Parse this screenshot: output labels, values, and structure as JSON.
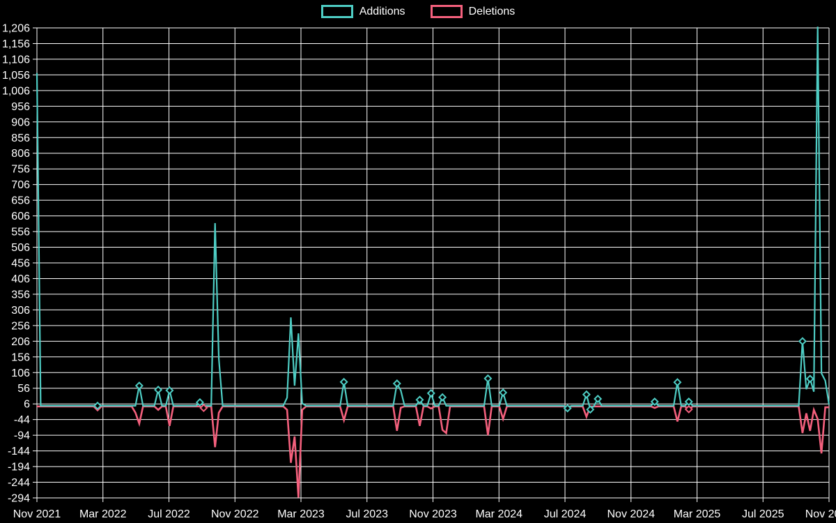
{
  "page": {
    "background": "#000000",
    "grid_color": "#ffffff",
    "text_color": "#ffffff"
  },
  "chart_data": {
    "type": "line",
    "title": "",
    "legend": {
      "position": "top-center",
      "items": [
        {
          "label": "Additions",
          "color": "#4ecdc4"
        },
        {
          "label": "Deletions",
          "color": "#f4607d"
        }
      ]
    },
    "x_axis": {
      "tick_labels": [
        "Nov 2021",
        "Mar 2022",
        "Jul 2022",
        "Nov 2022",
        "Mar 2023",
        "Jul 2023",
        "Nov 2023",
        "Mar 2024",
        "Jul 2024",
        "Nov 2024",
        "Mar 2025",
        "Jul 2025",
        "Nov 2025"
      ],
      "unit": "weeks",
      "week_range": [
        0,
        209
      ]
    },
    "y_axis": {
      "min": -294,
      "max": 1206,
      "step": 50,
      "tick_labels": [
        "1,206",
        "1,156",
        "1,106",
        "1,056",
        "1,006",
        "956",
        "906",
        "856",
        "806",
        "756",
        "706",
        "656",
        "606",
        "556",
        "506",
        "456",
        "406",
        "356",
        "306",
        "256",
        "206",
        "156",
        "106",
        "56",
        "6",
        "-44",
        "-94",
        "-144",
        "-194",
        "-244",
        "-294"
      ]
    },
    "grid": {
      "horizontal": true,
      "vertical": true
    },
    "marker_style": "hollow-diamond",
    "series": [
      {
        "name": "Additions",
        "color": "#4ecdc4",
        "points": [
          [
            0,
            1062
          ],
          [
            1,
            0
          ],
          [
            15,
            0
          ],
          [
            16,
            0,
            1
          ],
          [
            17,
            0
          ],
          [
            26,
            0
          ],
          [
            27,
            64,
            1
          ],
          [
            28,
            0
          ],
          [
            31,
            0
          ],
          [
            32,
            51,
            1
          ],
          [
            33,
            0
          ],
          [
            34,
            0
          ],
          [
            35,
            49,
            1
          ],
          [
            36,
            0
          ],
          [
            42,
            0
          ],
          [
            43,
            11,
            1
          ],
          [
            44,
            0
          ],
          [
            46,
            0
          ],
          [
            47,
            583
          ],
          [
            48,
            150
          ],
          [
            49,
            0
          ],
          [
            65,
            0
          ],
          [
            66,
            26
          ],
          [
            67,
            282
          ],
          [
            68,
            64
          ],
          [
            69,
            231
          ],
          [
            70,
            8
          ],
          [
            71,
            0
          ],
          [
            80,
            0
          ],
          [
            81,
            76,
            1
          ],
          [
            82,
            0
          ],
          [
            94,
            0
          ],
          [
            95,
            71,
            1
          ],
          [
            96,
            49
          ],
          [
            97,
            0
          ],
          [
            100,
            0
          ],
          [
            101,
            19,
            1
          ],
          [
            102,
            0
          ],
          [
            103,
            0
          ],
          [
            104,
            40,
            1
          ],
          [
            105,
            0
          ],
          [
            106,
            0
          ],
          [
            107,
            27,
            1
          ],
          [
            108,
            0
          ],
          [
            118,
            0
          ],
          [
            119,
            87,
            1
          ],
          [
            120,
            0
          ],
          [
            122,
            0
          ],
          [
            123,
            42,
            1
          ],
          [
            124,
            0
          ],
          [
            139,
            0
          ],
          [
            140,
            -8,
            1
          ],
          [
            141,
            0
          ],
          [
            144,
            0
          ],
          [
            145,
            36,
            1
          ],
          [
            146,
            -12,
            1
          ],
          [
            147,
            0
          ],
          [
            148,
            22,
            1
          ],
          [
            149,
            0
          ],
          [
            162,
            0
          ],
          [
            163,
            13,
            1
          ],
          [
            164,
            0
          ],
          [
            168,
            0
          ],
          [
            169,
            75,
            1
          ],
          [
            170,
            0
          ],
          [
            171,
            0
          ],
          [
            172,
            13,
            1
          ],
          [
            173,
            0
          ],
          [
            200,
            0
          ],
          [
            201,
            0
          ],
          [
            202,
            206,
            1
          ],
          [
            203,
            53
          ],
          [
            204,
            86,
            1
          ],
          [
            205,
            45
          ],
          [
            206,
            1210
          ],
          [
            207,
            104
          ],
          [
            208,
            80
          ],
          [
            209,
            4
          ]
        ]
      },
      {
        "name": "Deletions",
        "color": "#f4607d",
        "points": [
          [
            0,
            0
          ],
          [
            15,
            0
          ],
          [
            16,
            -5,
            1
          ],
          [
            17,
            0
          ],
          [
            25,
            0
          ],
          [
            26,
            -20
          ],
          [
            27,
            -55
          ],
          [
            28,
            0
          ],
          [
            31,
            0
          ],
          [
            32,
            -11
          ],
          [
            33,
            0
          ],
          [
            34,
            0
          ],
          [
            35,
            -62
          ],
          [
            36,
            0
          ],
          [
            43,
            0
          ],
          [
            44,
            -7,
            1
          ],
          [
            45,
            0
          ],
          [
            46,
            0
          ],
          [
            47,
            -130
          ],
          [
            48,
            -20
          ],
          [
            49,
            0
          ],
          [
            65,
            0
          ],
          [
            66,
            -11
          ],
          [
            67,
            -180
          ],
          [
            68,
            -96
          ],
          [
            69,
            -291
          ],
          [
            70,
            -11
          ],
          [
            71,
            0
          ],
          [
            80,
            0
          ],
          [
            81,
            -44
          ],
          [
            82,
            0
          ],
          [
            94,
            0
          ],
          [
            95,
            -78
          ],
          [
            96,
            -4
          ],
          [
            97,
            0
          ],
          [
            100,
            0
          ],
          [
            101,
            -62
          ],
          [
            102,
            0
          ],
          [
            103,
            0
          ],
          [
            104,
            -7
          ],
          [
            105,
            0
          ],
          [
            106,
            0
          ],
          [
            107,
            -75
          ],
          [
            108,
            -85
          ],
          [
            109,
            0
          ],
          [
            118,
            0
          ],
          [
            119,
            -92
          ],
          [
            120,
            0
          ],
          [
            122,
            0
          ],
          [
            123,
            -40
          ],
          [
            124,
            0
          ],
          [
            144,
            0
          ],
          [
            145,
            -33
          ],
          [
            146,
            0
          ],
          [
            162,
            0
          ],
          [
            163,
            -5
          ],
          [
            164,
            0
          ],
          [
            168,
            0
          ],
          [
            169,
            -48
          ],
          [
            170,
            0
          ],
          [
            171,
            0
          ],
          [
            172,
            -11,
            1
          ],
          [
            173,
            0
          ],
          [
            200,
            0
          ],
          [
            201,
            0
          ],
          [
            202,
            -85
          ],
          [
            203,
            -22
          ],
          [
            204,
            -78
          ],
          [
            205,
            -11
          ],
          [
            206,
            -40
          ],
          [
            207,
            -150
          ],
          [
            208,
            -3
          ],
          [
            209,
            -3
          ]
        ]
      }
    ]
  }
}
